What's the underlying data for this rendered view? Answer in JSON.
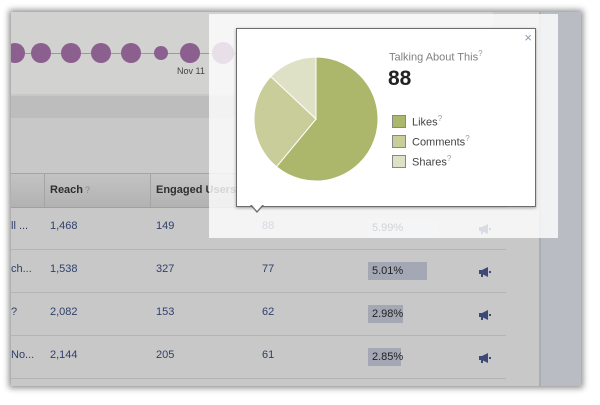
{
  "timeline": {
    "date_label": "Nov 11",
    "dot_color": "#8b5f8e"
  },
  "table": {
    "headers": [
      {
        "label": "Reach",
        "help": "?"
      },
      {
        "label": "Engaged Users",
        "help": ""
      }
    ],
    "rows": [
      {
        "post": "ll ...",
        "reach": "1,468",
        "engaged": "149",
        "talking": "88",
        "virality": "5.99%",
        "virality_fraction": 0.0599
      },
      {
        "post": "ch...",
        "reach": "1,538",
        "engaged": "327",
        "talking": "77",
        "virality": "5.01%",
        "virality_fraction": 0.0501
      },
      {
        "post": "?",
        "reach": "2,082",
        "engaged": "153",
        "talking": "62",
        "virality": "2.98%",
        "virality_fraction": 0.0298
      },
      {
        "post": "No...",
        "reach": "2,144",
        "engaged": "205",
        "talking": "61",
        "virality": "2.85%",
        "virality_fraction": 0.0285
      }
    ],
    "promote_icon": "megaphone-icon"
  },
  "popup": {
    "title": "Talking About This",
    "title_help": "?",
    "value": "88",
    "close_icon": "close-icon",
    "close_label": "×",
    "legend": [
      {
        "label": "Likes",
        "help": "?",
        "color": "#adb76c"
      },
      {
        "label": "Comments",
        "help": "?",
        "color": "#c8cd9a"
      },
      {
        "label": "Shares",
        "help": "?",
        "color": "#dfe1c6"
      }
    ]
  },
  "chart_data": {
    "type": "pie",
    "categories": [
      "Likes",
      "Comments",
      "Shares"
    ],
    "values": [
      61,
      26,
      13
    ],
    "colors": [
      "#adb76c",
      "#c8cd9a",
      "#dfe1c6"
    ]
  }
}
